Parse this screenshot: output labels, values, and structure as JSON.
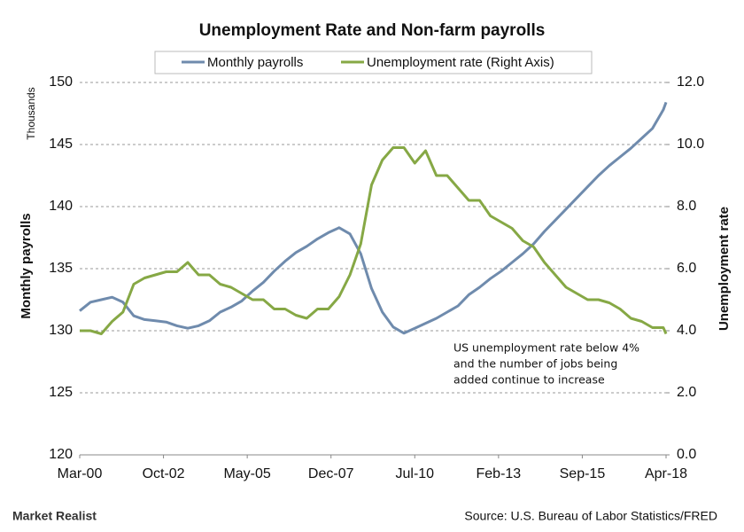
{
  "chart_data": {
    "type": "line",
    "title": "Unemployment  Rate and Non-farm  payrolls",
    "y_label_unit": "Thousands",
    "y_label": "Monthly payrolls",
    "y2_label": "Unemployment rate",
    "annotation": [
      "US unemployment rate below 4%",
      "and the number of jobs being",
      "added continue to increase"
    ],
    "source": "Source: U.S. Bureau of Labor Statistics/FRED",
    "logo": "Market Realist",
    "x": [
      "2000-03",
      "2000-07",
      "2000-11",
      "2001-03",
      "2001-07",
      "2001-11",
      "2002-03",
      "2002-07",
      "2002-11",
      "2003-03",
      "2003-07",
      "2003-11",
      "2004-03",
      "2004-07",
      "2004-11",
      "2005-03",
      "2005-07",
      "2005-11",
      "2006-03",
      "2006-07",
      "2006-11",
      "2007-03",
      "2007-07",
      "2007-11",
      "2008-03",
      "2008-07",
      "2008-11",
      "2009-03",
      "2009-07",
      "2009-11",
      "2010-03",
      "2010-07",
      "2010-11",
      "2011-03",
      "2011-07",
      "2011-11",
      "2012-03",
      "2012-07",
      "2012-11",
      "2013-03",
      "2013-07",
      "2013-11",
      "2014-03",
      "2014-07",
      "2014-11",
      "2015-03",
      "2015-07",
      "2015-11",
      "2016-03",
      "2016-07",
      "2016-11",
      "2017-03",
      "2017-07",
      "2017-11",
      "2018-03",
      "2018-04"
    ],
    "xticks": [
      {
        "value": "2000-03",
        "label": "Mar-00"
      },
      {
        "value": "2002-10",
        "label": "Oct-02"
      },
      {
        "value": "2005-05",
        "label": "May-05"
      },
      {
        "value": "2007-12",
        "label": "Dec-07"
      },
      {
        "value": "2010-07",
        "label": "Jul-10"
      },
      {
        "value": "2013-02",
        "label": "Feb-13"
      },
      {
        "value": "2015-09",
        "label": "Sep-15"
      },
      {
        "value": "2018-04",
        "label": "Apr-18"
      }
    ],
    "xlim": [
      "2000-03",
      "2018-04"
    ],
    "ylim": [
      120,
      150
    ],
    "yticks": [
      120,
      125,
      130,
      135,
      140,
      145,
      150
    ],
    "y2lim": [
      0,
      12
    ],
    "y2ticks": [
      {
        "value": 0,
        "label": "0.0"
      },
      {
        "value": 2,
        "label": "2.0"
      },
      {
        "value": 4,
        "label": "4.0"
      },
      {
        "value": 6,
        "label": "6.0"
      },
      {
        "value": 8,
        "label": "8.0"
      },
      {
        "value": 10,
        "label": "10.0"
      },
      {
        "value": 12,
        "label": "12.0"
      }
    ],
    "grid": true,
    "series": [
      {
        "name": "Monthly payrolls",
        "color": "#6f8bad",
        "values": [
          131.6,
          132.3,
          132.5,
          132.7,
          132.3,
          131.2,
          130.9,
          130.8,
          130.7,
          130.4,
          130.2,
          130.4,
          130.8,
          131.5,
          131.9,
          132.4,
          133.2,
          133.9,
          134.8,
          135.6,
          136.3,
          136.8,
          137.4,
          137.9,
          138.3,
          137.8,
          136.2,
          133.4,
          131.5,
          130.3,
          129.8,
          130.2,
          130.6,
          131.0,
          131.5,
          132.0,
          132.9,
          133.5,
          134.2,
          134.8,
          135.5,
          136.2,
          137.0,
          138.0,
          138.9,
          139.8,
          140.7,
          141.6,
          142.5,
          143.3,
          144.0,
          144.7,
          145.5,
          146.3,
          147.8,
          148.4
        ]
      },
      {
        "name": "Unemployment rate (Right Axis)",
        "color": "#86a845",
        "axis": "y2",
        "values": [
          4.0,
          4.0,
          3.9,
          4.3,
          4.6,
          5.5,
          5.7,
          5.8,
          5.9,
          5.9,
          6.2,
          5.8,
          5.8,
          5.5,
          5.4,
          5.2,
          5.0,
          5.0,
          4.7,
          4.7,
          4.5,
          4.4,
          4.7,
          4.7,
          5.1,
          5.8,
          6.8,
          8.7,
          9.5,
          9.9,
          9.9,
          9.4,
          9.8,
          9.0,
          9.0,
          8.6,
          8.2,
          8.2,
          7.7,
          7.5,
          7.3,
          6.9,
          6.7,
          6.2,
          5.8,
          5.4,
          5.2,
          5.0,
          5.0,
          4.9,
          4.7,
          4.4,
          4.3,
          4.1,
          4.1,
          3.9
        ]
      }
    ]
  }
}
